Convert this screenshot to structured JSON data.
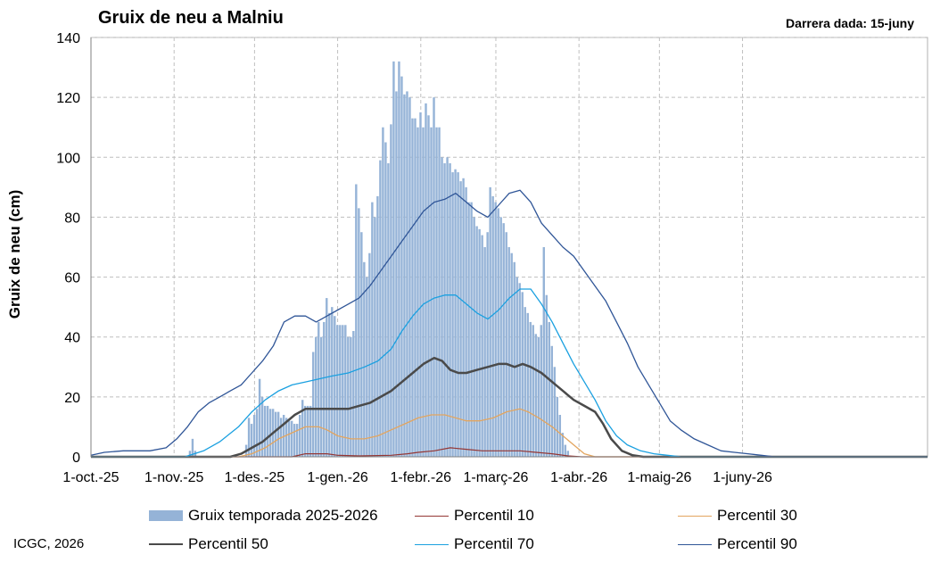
{
  "title": "Gruix de neu a Malniu",
  "last_data": "Darrera dada:  15-juny",
  "credit": "ICGC,  2026",
  "chart_data": {
    "type": "bar",
    "ylabel": "Gruix de neu (cm)",
    "xlabel": "",
    "ylim": [
      0,
      140
    ],
    "yticks": [
      0,
      20,
      40,
      60,
      80,
      100,
      120,
      140
    ],
    "xlim_days": [
      0,
      312
    ],
    "xticks": [
      {
        "day": 0,
        "label": "1-oct.-25"
      },
      {
        "day": 31,
        "label": "1-nov.-25"
      },
      {
        "day": 61,
        "label": "1-des.-25"
      },
      {
        "day": 92,
        "label": "1-gen.-26"
      },
      {
        "day": 123,
        "label": "1-febr.-26"
      },
      {
        "day": 151,
        "label": "1-març-26"
      },
      {
        "day": 182,
        "label": "1-abr.-26"
      },
      {
        "day": 212,
        "label": "1-maig-26"
      },
      {
        "day": 243,
        "label": "1-juny-26"
      }
    ],
    "grid": true,
    "legend_position": "bottom",
    "bars": {
      "name": "Gruix temporada 2025-2026",
      "color": "#95b3d7",
      "points": [
        [
          37,
          2
        ],
        [
          38,
          6
        ],
        [
          39,
          2
        ],
        [
          58,
          4
        ],
        [
          59,
          13
        ],
        [
          60,
          11
        ],
        [
          61,
          14
        ],
        [
          62,
          16
        ],
        [
          63,
          26
        ],
        [
          64,
          20
        ],
        [
          65,
          17
        ],
        [
          66,
          17
        ],
        [
          67,
          16
        ],
        [
          68,
          16
        ],
        [
          69,
          15
        ],
        [
          70,
          15
        ],
        [
          71,
          13
        ],
        [
          72,
          14
        ],
        [
          73,
          13
        ],
        [
          74,
          12
        ],
        [
          75,
          12
        ],
        [
          76,
          11
        ],
        [
          77,
          11
        ],
        [
          78,
          14
        ],
        [
          79,
          19
        ],
        [
          80,
          17
        ],
        [
          81,
          17
        ],
        [
          82,
          17
        ],
        [
          83,
          35
        ],
        [
          84,
          40
        ],
        [
          85,
          45
        ],
        [
          86,
          40
        ],
        [
          87,
          45
        ],
        [
          88,
          53
        ],
        [
          89,
          48
        ],
        [
          90,
          50
        ],
        [
          91,
          47
        ],
        [
          92,
          44
        ],
        [
          93,
          44
        ],
        [
          94,
          44
        ],
        [
          95,
          44
        ],
        [
          96,
          40
        ],
        [
          97,
          40
        ],
        [
          98,
          42
        ],
        [
          99,
          91
        ],
        [
          100,
          83
        ],
        [
          101,
          75
        ],
        [
          102,
          65
        ],
        [
          103,
          60
        ],
        [
          104,
          68
        ],
        [
          105,
          85
        ],
        [
          106,
          80
        ],
        [
          107,
          87
        ],
        [
          108,
          99
        ],
        [
          109,
          110
        ],
        [
          110,
          105
        ],
        [
          111,
          98
        ],
        [
          112,
          111
        ],
        [
          113,
          132
        ],
        [
          114,
          122
        ],
        [
          115,
          132
        ],
        [
          116,
          127
        ],
        [
          117,
          121
        ],
        [
          118,
          122
        ],
        [
          119,
          120
        ],
        [
          120,
          113
        ],
        [
          121,
          113
        ],
        [
          122,
          110
        ],
        [
          123,
          115
        ],
        [
          124,
          110
        ],
        [
          125,
          118
        ],
        [
          126,
          114
        ],
        [
          127,
          110
        ],
        [
          128,
          120
        ],
        [
          129,
          110
        ],
        [
          130,
          110
        ],
        [
          131,
          100
        ],
        [
          132,
          98
        ],
        [
          133,
          100
        ],
        [
          134,
          98
        ],
        [
          135,
          95
        ],
        [
          136,
          96
        ],
        [
          137,
          95
        ],
        [
          138,
          92
        ],
        [
          139,
          93
        ],
        [
          140,
          90
        ],
        [
          141,
          85
        ],
        [
          142,
          85
        ],
        [
          143,
          80
        ],
        [
          144,
          77
        ],
        [
          145,
          76
        ],
        [
          146,
          74
        ],
        [
          147,
          70
        ],
        [
          148,
          75
        ],
        [
          149,
          90
        ],
        [
          150,
          87
        ],
        [
          151,
          85
        ],
        [
          152,
          83
        ],
        [
          153,
          80
        ],
        [
          154,
          78
        ],
        [
          155,
          75
        ],
        [
          156,
          70
        ],
        [
          157,
          68
        ],
        [
          158,
          65
        ],
        [
          159,
          60
        ],
        [
          160,
          58
        ],
        [
          161,
          55
        ],
        [
          162,
          50
        ],
        [
          163,
          48
        ],
        [
          164,
          45
        ],
        [
          165,
          44
        ],
        [
          166,
          41
        ],
        [
          167,
          40
        ],
        [
          168,
          44
        ],
        [
          169,
          70
        ],
        [
          170,
          54
        ],
        [
          171,
          45
        ],
        [
          172,
          37
        ],
        [
          173,
          30
        ],
        [
          174,
          20
        ],
        [
          175,
          14
        ],
        [
          176,
          8
        ],
        [
          177,
          4
        ],
        [
          178,
          2
        ]
      ]
    },
    "series": [
      {
        "name": "Percentil 10",
        "color": "#943634",
        "points": [
          [
            0,
            0
          ],
          [
            75,
            0
          ],
          [
            80,
            1
          ],
          [
            84,
            1
          ],
          [
            88,
            1
          ],
          [
            92,
            0.5
          ],
          [
            100,
            0.3
          ],
          [
            112,
            0.5
          ],
          [
            118,
            1
          ],
          [
            122,
            1.5
          ],
          [
            128,
            2
          ],
          [
            134,
            3
          ],
          [
            140,
            2.5
          ],
          [
            146,
            2
          ],
          [
            152,
            2
          ],
          [
            160,
            2
          ],
          [
            166,
            1.5
          ],
          [
            172,
            1
          ],
          [
            178,
            0.3
          ],
          [
            183,
            0
          ],
          [
            312,
            0
          ]
        ]
      },
      {
        "name": "Percentil 30",
        "color": "#e3a55f",
        "points": [
          [
            0,
            0
          ],
          [
            55,
            0
          ],
          [
            60,
            1
          ],
          [
            65,
            3
          ],
          [
            70,
            6
          ],
          [
            75,
            8
          ],
          [
            80,
            10
          ],
          [
            85,
            10
          ],
          [
            88,
            9
          ],
          [
            92,
            7
          ],
          [
            97,
            6
          ],
          [
            102,
            6
          ],
          [
            107,
            7
          ],
          [
            112,
            9
          ],
          [
            117,
            11
          ],
          [
            122,
            13
          ],
          [
            127,
            14
          ],
          [
            132,
            14
          ],
          [
            136,
            13
          ],
          [
            140,
            12
          ],
          [
            145,
            12
          ],
          [
            150,
            13
          ],
          [
            155,
            15
          ],
          [
            160,
            16
          ],
          [
            163,
            15
          ],
          [
            167,
            13
          ],
          [
            172,
            10
          ],
          [
            176,
            7
          ],
          [
            180,
            4
          ],
          [
            184,
            1
          ],
          [
            188,
            0
          ],
          [
            312,
            0
          ]
        ]
      },
      {
        "name": "Percentil 50",
        "color": "#4a4a4a",
        "points": [
          [
            0,
            0
          ],
          [
            52,
            0
          ],
          [
            56,
            1
          ],
          [
            60,
            3
          ],
          [
            64,
            5
          ],
          [
            68,
            8
          ],
          [
            72,
            11
          ],
          [
            76,
            14
          ],
          [
            80,
            16
          ],
          [
            84,
            16
          ],
          [
            88,
            16
          ],
          [
            92,
            16
          ],
          [
            96,
            16
          ],
          [
            100,
            17
          ],
          [
            104,
            18
          ],
          [
            108,
            20
          ],
          [
            112,
            22
          ],
          [
            116,
            25
          ],
          [
            120,
            28
          ],
          [
            124,
            31
          ],
          [
            128,
            33
          ],
          [
            131,
            32
          ],
          [
            134,
            29
          ],
          [
            137,
            28
          ],
          [
            140,
            28
          ],
          [
            144,
            29
          ],
          [
            148,
            30
          ],
          [
            152,
            31
          ],
          [
            155,
            31
          ],
          [
            158,
            30
          ],
          [
            161,
            31
          ],
          [
            164,
            30
          ],
          [
            168,
            28
          ],
          [
            172,
            25
          ],
          [
            176,
            22
          ],
          [
            180,
            19
          ],
          [
            184,
            17
          ],
          [
            188,
            15
          ],
          [
            191,
            11
          ],
          [
            194,
            6
          ],
          [
            198,
            2
          ],
          [
            202,
            0.5
          ],
          [
            206,
            0
          ],
          [
            312,
            0
          ]
        ]
      },
      {
        "name": "Percentil 70",
        "color": "#1aa0e0",
        "points": [
          [
            0,
            0
          ],
          [
            35,
            0
          ],
          [
            42,
            2
          ],
          [
            48,
            5
          ],
          [
            55,
            10
          ],
          [
            60,
            15
          ],
          [
            65,
            19
          ],
          [
            70,
            22
          ],
          [
            75,
            24
          ],
          [
            80,
            25
          ],
          [
            85,
            26
          ],
          [
            90,
            27
          ],
          [
            96,
            28
          ],
          [
            102,
            30
          ],
          [
            107,
            32
          ],
          [
            112,
            36
          ],
          [
            116,
            42
          ],
          [
            120,
            47
          ],
          [
            124,
            51
          ],
          [
            128,
            53
          ],
          [
            132,
            54
          ],
          [
            136,
            54
          ],
          [
            140,
            51
          ],
          [
            144,
            48
          ],
          [
            148,
            46
          ],
          [
            152,
            49
          ],
          [
            156,
            53
          ],
          [
            160,
            56
          ],
          [
            164,
            56
          ],
          [
            168,
            51
          ],
          [
            172,
            45
          ],
          [
            176,
            38
          ],
          [
            180,
            31
          ],
          [
            184,
            25
          ],
          [
            188,
            19
          ],
          [
            192,
            12
          ],
          [
            196,
            7
          ],
          [
            200,
            4
          ],
          [
            205,
            2
          ],
          [
            210,
            1
          ],
          [
            215,
            0.5
          ],
          [
            220,
            0
          ],
          [
            312,
            0
          ]
        ]
      },
      {
        "name": "Percentil 90",
        "color": "#2f5597",
        "points": [
          [
            0,
            0.5
          ],
          [
            5,
            1.5
          ],
          [
            12,
            2
          ],
          [
            18,
            2
          ],
          [
            22,
            2
          ],
          [
            28,
            3
          ],
          [
            32,
            6
          ],
          [
            36,
            10
          ],
          [
            40,
            15
          ],
          [
            44,
            18
          ],
          [
            48,
            20
          ],
          [
            52,
            22
          ],
          [
            56,
            24
          ],
          [
            60,
            28
          ],
          [
            64,
            32
          ],
          [
            68,
            37
          ],
          [
            70,
            41
          ],
          [
            72,
            45
          ],
          [
            74,
            46
          ],
          [
            76,
            47
          ],
          [
            80,
            47
          ],
          [
            84,
            45
          ],
          [
            88,
            47
          ],
          [
            92,
            49
          ],
          [
            96,
            51
          ],
          [
            100,
            53
          ],
          [
            104,
            57
          ],
          [
            108,
            62
          ],
          [
            112,
            67
          ],
          [
            116,
            72
          ],
          [
            120,
            77
          ],
          [
            124,
            82
          ],
          [
            128,
            85
          ],
          [
            132,
            86
          ],
          [
            136,
            88
          ],
          [
            140,
            85
          ],
          [
            144,
            82
          ],
          [
            148,
            80
          ],
          [
            152,
            84
          ],
          [
            156,
            88
          ],
          [
            160,
            89
          ],
          [
            164,
            85
          ],
          [
            168,
            78
          ],
          [
            172,
            74
          ],
          [
            176,
            70
          ],
          [
            180,
            67
          ],
          [
            184,
            62
          ],
          [
            188,
            57
          ],
          [
            192,
            52
          ],
          [
            196,
            45
          ],
          [
            200,
            38
          ],
          [
            204,
            30
          ],
          [
            208,
            24
          ],
          [
            212,
            18
          ],
          [
            216,
            12
          ],
          [
            220,
            9
          ],
          [
            225,
            6
          ],
          [
            230,
            4
          ],
          [
            235,
            2
          ],
          [
            240,
            1.5
          ],
          [
            245,
            1
          ],
          [
            250,
            0.5
          ],
          [
            255,
            0
          ],
          [
            312,
            0
          ]
        ]
      }
    ]
  }
}
